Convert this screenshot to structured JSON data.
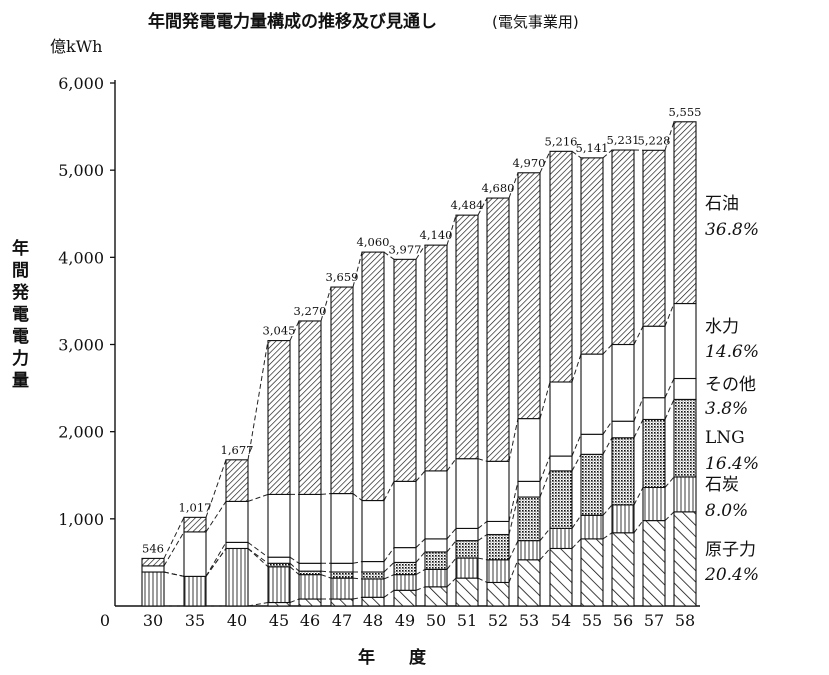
{
  "chart_data": {
    "type": "bar",
    "stacked": true,
    "title": "年間発電電力量構成の推移及び見通し",
    "subtitle": "(電気事業用)",
    "unit": "億kWh",
    "ylabel": "年間発電電力量",
    "xlabel": "年　　度",
    "ylim": [
      0,
      6000
    ],
    "yticks": [
      {
        "value": 0,
        "label": "0"
      },
      {
        "value": 1000,
        "label": "1,000"
      },
      {
        "value": 2000,
        "label": "2,000"
      },
      {
        "value": 3000,
        "label": "3,000"
      },
      {
        "value": 4000,
        "label": "4,000"
      },
      {
        "value": 5000,
        "label": "5,000"
      },
      {
        "value": 6000,
        "label": "6,000"
      }
    ],
    "categories": [
      "30",
      "35",
      "40",
      "45",
      "46",
      "47",
      "48",
      "49",
      "50",
      "51",
      "52",
      "53",
      "54",
      "55",
      "56",
      "57",
      "58"
    ],
    "totals": [
      546,
      1017,
      1677,
      3045,
      3270,
      3659,
      4060,
      3977,
      4140,
      4484,
      4680,
      4970,
      5216,
      5141,
      5231,
      5228,
      5555
    ],
    "total_labels": [
      "546",
      "1,017",
      "1,677",
      "3,045",
      "3,270",
      "3,659",
      "4,060",
      "3,977",
      "4,140",
      "4,484",
      "4,680",
      "4,970",
      "5,216",
      "5,141",
      "5,231",
      "5,228",
      "5,555"
    ],
    "series": [
      {
        "name": "原子力",
        "share": "20.4%",
        "pattern": "hatch-sparse",
        "values": [
          0,
          0,
          0,
          40,
          80,
          80,
          100,
          180,
          220,
          320,
          270,
          530,
          660,
          770,
          840,
          980,
          1080
        ]
      },
      {
        "name": "石炭",
        "share": "8.0%",
        "pattern": "hatch-vertical",
        "values": [
          390,
          340,
          660,
          410,
          280,
          240,
          210,
          180,
          200,
          230,
          260,
          220,
          230,
          270,
          320,
          380,
          400
        ]
      },
      {
        "name": "LNG",
        "share": "16.4%",
        "pattern": "dots",
        "values": [
          0,
          0,
          0,
          40,
          40,
          70,
          80,
          140,
          200,
          200,
          290,
          500,
          660,
          700,
          770,
          780,
          890
        ]
      },
      {
        "name": "その他",
        "share": "3.8%",
        "pattern": "blank",
        "values": [
          0,
          0,
          70,
          70,
          90,
          100,
          120,
          170,
          150,
          140,
          150,
          180,
          170,
          230,
          190,
          250,
          240
        ]
      },
      {
        "name": "水力",
        "share": "14.6%",
        "pattern": "blank",
        "values": [
          70,
          510,
          470,
          720,
          790,
          800,
          700,
          760,
          780,
          800,
          690,
          720,
          850,
          920,
          880,
          820,
          860
        ]
      },
      {
        "name": "石油",
        "share": "36.8%",
        "pattern": "hatch-dense",
        "values": [
          86,
          167,
          477,
          1765,
          1990,
          2369,
          2850,
          2547,
          2590,
          2794,
          3020,
          2820,
          2646,
          2251,
          2231,
          2018,
          2085
        ]
      }
    ]
  }
}
